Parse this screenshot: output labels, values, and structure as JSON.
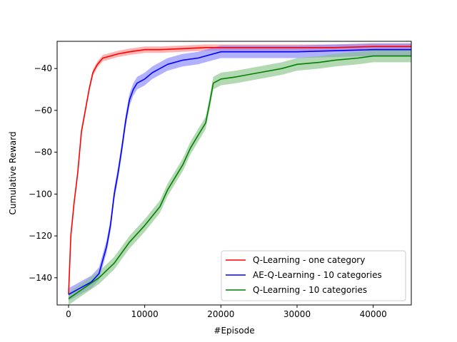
{
  "chart_data": {
    "type": "line",
    "title": "",
    "xlabel": "#Episode",
    "ylabel": "Cumulative Reward",
    "xlim": [
      -1500,
      45000
    ],
    "ylim": [
      -153,
      -27
    ],
    "xticks": [
      0,
      10000,
      20000,
      30000,
      40000
    ],
    "xtick_labels": [
      "0",
      "10000",
      "20000",
      "30000",
      "40000"
    ],
    "yticks": [
      -140,
      -120,
      -100,
      -80,
      -60,
      -40
    ],
    "ytick_labels": [
      "−140",
      "−120",
      "−100",
      "−80",
      "−60",
      "−40"
    ],
    "grid": false,
    "legend_position": "lower-right",
    "series": [
      {
        "name": "Q-Learning - one category",
        "color": "#ff0000",
        "band_color": "#ff8080",
        "x": [
          0,
          300,
          700,
          1200,
          1700,
          2200,
          2700,
          3200,
          3800,
          4500,
          5500,
          6500,
          8000,
          10000,
          12000,
          15000,
          18000,
          22000,
          26000,
          30000,
          35000,
          40000,
          45000
        ],
        "values": [
          -148,
          -120,
          -105,
          -90,
          -70,
          -60,
          -50,
          -42,
          -38,
          -35,
          -34,
          -33,
          -32,
          -31,
          -31,
          -30.5,
          -30,
          -30,
          -30,
          -30,
          -30,
          -29.5,
          -29.5
        ],
        "band": 1.5
      },
      {
        "name": "AE-Q-Learning - 10 categories",
        "color": "#0000ff",
        "band_color": "#7d7dff",
        "x": [
          0,
          1000,
          2000,
          3000,
          4000,
          5000,
          5500,
          6000,
          6500,
          7000,
          7500,
          8000,
          8500,
          9000,
          10000,
          11000,
          12000,
          13000,
          15000,
          17000,
          20000,
          25000,
          30000,
          35000,
          40000,
          45000
        ],
        "values": [
          -148,
          -146,
          -144,
          -142,
          -138,
          -125,
          -115,
          -100,
          -90,
          -78,
          -65,
          -55,
          -50,
          -47,
          -45,
          -42,
          -40,
          -38,
          -36,
          -35,
          -32,
          -32,
          -32,
          -31.5,
          -31,
          -31
        ],
        "band": 3
      },
      {
        "name": "Q-Learning - 10 categories",
        "color": "#008000",
        "band_color": "#80c080",
        "x": [
          0,
          2000,
          4000,
          6000,
          8000,
          10000,
          12000,
          13000,
          14000,
          15000,
          16000,
          17000,
          18000,
          18500,
          19000,
          20000,
          22000,
          25000,
          28000,
          30000,
          33000,
          35000,
          38000,
          40000,
          42000,
          45000
        ],
        "values": [
          -150,
          -145,
          -140,
          -133,
          -123,
          -115,
          -106,
          -98,
          -92,
          -86,
          -78,
          -72,
          -66,
          -57,
          -47,
          -45,
          -44,
          -42,
          -40,
          -38,
          -37,
          -36,
          -35,
          -34,
          -34,
          -34
        ],
        "band": 3
      }
    ]
  }
}
